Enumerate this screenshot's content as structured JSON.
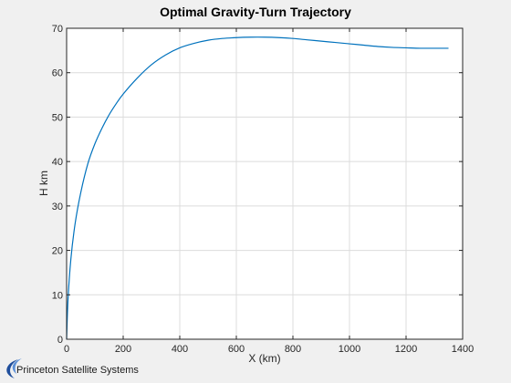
{
  "chart_data": {
    "type": "line",
    "title": "Optimal Gravity-Turn Trajectory",
    "xlabel": "X (km)",
    "ylabel": "H km",
    "xlim": [
      0,
      1400
    ],
    "ylim": [
      0,
      70
    ],
    "xticks": [
      0,
      200,
      400,
      600,
      800,
      1000,
      1200,
      1400
    ],
    "yticks": [
      0,
      10,
      20,
      30,
      40,
      50,
      60,
      70
    ],
    "grid": true,
    "series": [
      {
        "color": "#0072bd",
        "x": [
          0,
          5,
          15,
          30,
          50,
          75,
          100,
          125,
          150,
          175,
          200,
          250,
          300,
          350,
          400,
          450,
          500,
          550,
          600,
          650,
          700,
          750,
          800,
          850,
          900,
          950,
          1000,
          1050,
          1100,
          1150,
          1200,
          1250,
          1300,
          1350
        ],
        "y": [
          0,
          9,
          18,
          26,
          33,
          39.5,
          44,
          47.5,
          50.5,
          53,
          55.2,
          58.8,
          61.8,
          64,
          65.6,
          66.6,
          67.3,
          67.7,
          67.9,
          68.0,
          68.0,
          67.9,
          67.7,
          67.4,
          67.1,
          66.8,
          66.5,
          66.2,
          65.9,
          65.7,
          65.6,
          65.5,
          65.5,
          65.5
        ]
      }
    ]
  },
  "logo": {
    "text": "Princeton Satellite Systems",
    "color": "#1f4e9c"
  }
}
